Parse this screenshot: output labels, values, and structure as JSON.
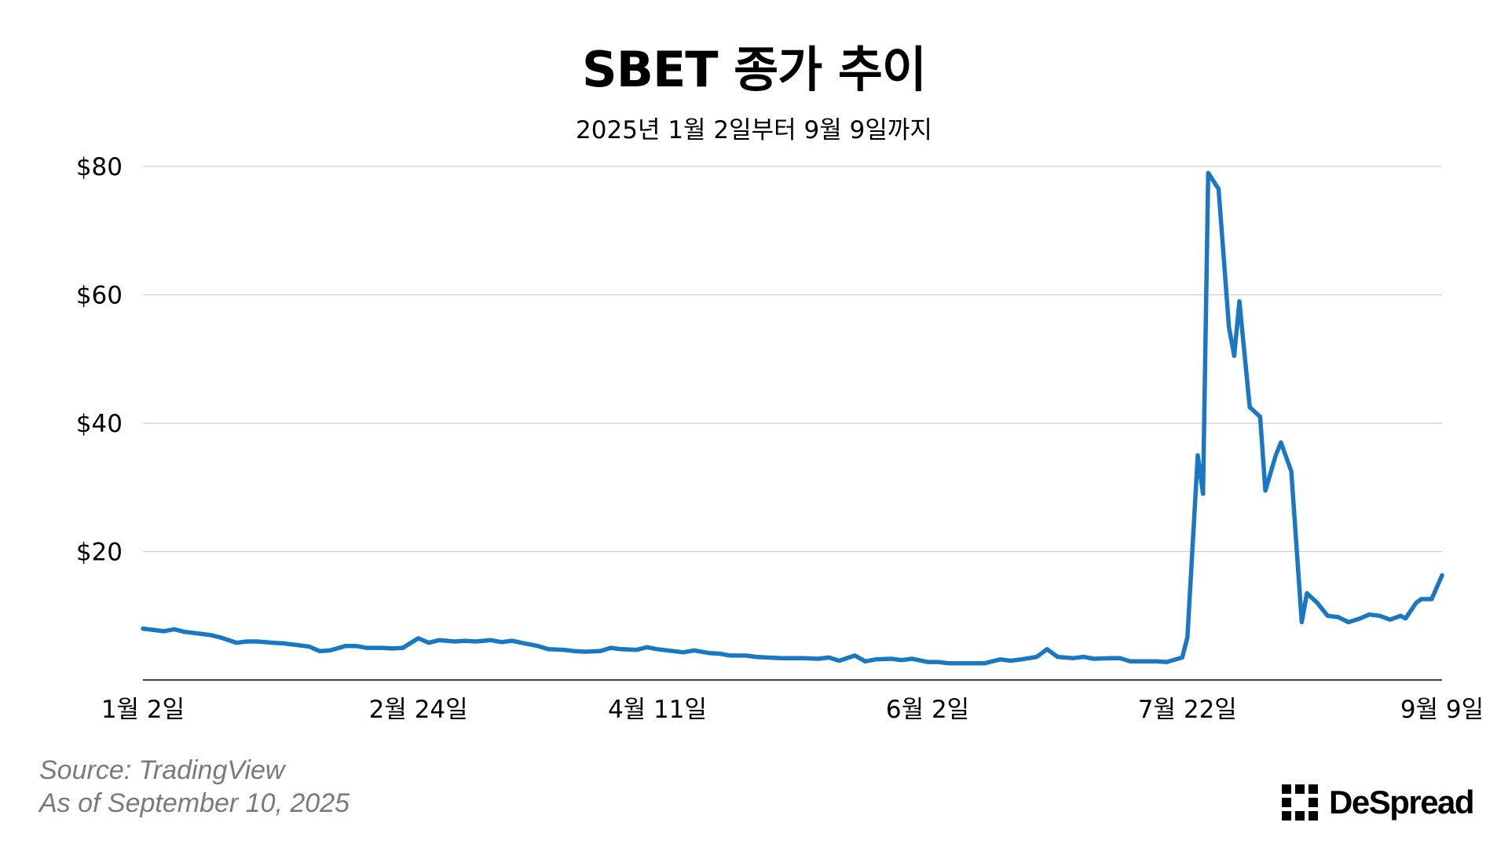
{
  "chart_data": {
    "type": "line",
    "title": "SBET 종가 추이",
    "subtitle": "2025년 1월 2일부터 9월 9일까지",
    "xlabel": "",
    "ylabel": "",
    "ylim": [
      0,
      80
    ],
    "y_ticks": [
      {
        "value": 20,
        "label": "$20"
      },
      {
        "value": 40,
        "label": "$40"
      },
      {
        "value": 60,
        "label": "$60"
      },
      {
        "value": 80,
        "label": "$80"
      }
    ],
    "x_ticks": [
      {
        "value": "2025-01-02",
        "label": "1월 2일"
      },
      {
        "value": "2025-02-24",
        "label": "2월 24일"
      },
      {
        "value": "2025-04-11",
        "label": "4월 11일"
      },
      {
        "value": "2025-06-02",
        "label": "6월 2일"
      },
      {
        "value": "2025-07-22",
        "label": "7월 22일"
      },
      {
        "value": "2025-09-09",
        "label": "9월 9일"
      }
    ],
    "grid": true,
    "line_color": "#1a78c2",
    "series": [
      {
        "values": [
          [
            "2025-01-02",
            8.0
          ],
          [
            "2025-01-06",
            7.6
          ],
          [
            "2025-01-08",
            7.9
          ],
          [
            "2025-01-10",
            7.5
          ],
          [
            "2025-01-13",
            7.2
          ],
          [
            "2025-01-15",
            7.0
          ],
          [
            "2025-01-17",
            6.6
          ],
          [
            "2025-01-20",
            5.8
          ],
          [
            "2025-01-22",
            6.0
          ],
          [
            "2025-01-24",
            6.0
          ],
          [
            "2025-01-27",
            5.8
          ],
          [
            "2025-01-29",
            5.7
          ],
          [
            "2025-01-31",
            5.5
          ],
          [
            "2025-02-03",
            5.2
          ],
          [
            "2025-02-05",
            4.5
          ],
          [
            "2025-02-07",
            4.6
          ],
          [
            "2025-02-10",
            5.3
          ],
          [
            "2025-02-12",
            5.3
          ],
          [
            "2025-02-14",
            5.0
          ],
          [
            "2025-02-17",
            5.0
          ],
          [
            "2025-02-19",
            4.9
          ],
          [
            "2025-02-21",
            5.0
          ],
          [
            "2025-02-24",
            6.5
          ],
          [
            "2025-02-26",
            5.8
          ],
          [
            "2025-02-28",
            6.2
          ],
          [
            "2025-03-03",
            6.0
          ],
          [
            "2025-03-05",
            6.1
          ],
          [
            "2025-03-07",
            6.0
          ],
          [
            "2025-03-10",
            6.2
          ],
          [
            "2025-03-12",
            5.9
          ],
          [
            "2025-03-14",
            6.1
          ],
          [
            "2025-03-17",
            5.6
          ],
          [
            "2025-03-19",
            5.3
          ],
          [
            "2025-03-21",
            4.8
          ],
          [
            "2025-03-24",
            4.7
          ],
          [
            "2025-03-26",
            4.5
          ],
          [
            "2025-03-28",
            4.4
          ],
          [
            "2025-03-31",
            4.5
          ],
          [
            "2025-04-02",
            5.0
          ],
          [
            "2025-04-04",
            4.8
          ],
          [
            "2025-04-07",
            4.7
          ],
          [
            "2025-04-09",
            5.1
          ],
          [
            "2025-04-11",
            4.8
          ],
          [
            "2025-04-14",
            4.5
          ],
          [
            "2025-04-16",
            4.3
          ],
          [
            "2025-04-18",
            4.6
          ],
          [
            "2025-04-21",
            4.2
          ],
          [
            "2025-04-23",
            4.1
          ],
          [
            "2025-04-25",
            3.8
          ],
          [
            "2025-04-28",
            3.8
          ],
          [
            "2025-04-30",
            3.6
          ],
          [
            "2025-05-02",
            3.5
          ],
          [
            "2025-05-05",
            3.4
          ],
          [
            "2025-05-07",
            3.4
          ],
          [
            "2025-05-09",
            3.4
          ],
          [
            "2025-05-12",
            3.3
          ],
          [
            "2025-05-14",
            3.5
          ],
          [
            "2025-05-16",
            3.0
          ],
          [
            "2025-05-19",
            3.8
          ],
          [
            "2025-05-21",
            2.9
          ],
          [
            "2025-05-23",
            3.2
          ],
          [
            "2025-05-26",
            3.3
          ],
          [
            "2025-05-28",
            3.1
          ],
          [
            "2025-05-30",
            3.3
          ],
          [
            "2025-06-02",
            2.8
          ],
          [
            "2025-06-04",
            2.8
          ],
          [
            "2025-06-06",
            2.6
          ],
          [
            "2025-06-09",
            2.6
          ],
          [
            "2025-06-11",
            2.6
          ],
          [
            "2025-06-13",
            2.6
          ],
          [
            "2025-06-16",
            3.2
          ],
          [
            "2025-06-18",
            3.0
          ],
          [
            "2025-06-20",
            3.2
          ],
          [
            "2025-06-23",
            3.6
          ],
          [
            "2025-06-25",
            4.8
          ],
          [
            "2025-06-27",
            3.6
          ],
          [
            "2025-06-30",
            3.4
          ],
          [
            "2025-07-02",
            3.6
          ],
          [
            "2025-07-04",
            3.3
          ],
          [
            "2025-07-07",
            3.4
          ],
          [
            "2025-07-09",
            3.4
          ],
          [
            "2025-07-11",
            2.9
          ],
          [
            "2025-07-14",
            2.9
          ],
          [
            "2025-07-16",
            2.9
          ],
          [
            "2025-07-18",
            2.8
          ],
          [
            "2025-07-21",
            3.5
          ],
          [
            "2025-07-22",
            6.6
          ],
          [
            "2025-07-24",
            35.0
          ],
          [
            "2025-07-25",
            29.0
          ],
          [
            "2025-07-26",
            79.0
          ],
          [
            "2025-07-28",
            76.5
          ],
          [
            "2025-07-30",
            55.0
          ],
          [
            "2025-07-31",
            50.5
          ],
          [
            "2025-08-01",
            59.0
          ],
          [
            "2025-08-03",
            42.5
          ],
          [
            "2025-08-05",
            41.0
          ],
          [
            "2025-08-06",
            29.5
          ],
          [
            "2025-08-08",
            35.0
          ],
          [
            "2025-08-09",
            37.0
          ],
          [
            "2025-08-11",
            32.5
          ],
          [
            "2025-08-13",
            9.0
          ],
          [
            "2025-08-14",
            13.5
          ],
          [
            "2025-08-16",
            12.0
          ],
          [
            "2025-08-18",
            10.0
          ],
          [
            "2025-08-20",
            9.8
          ],
          [
            "2025-08-22",
            9.0
          ],
          [
            "2025-08-24",
            9.5
          ],
          [
            "2025-08-26",
            10.2
          ],
          [
            "2025-08-28",
            10.0
          ],
          [
            "2025-08-30",
            9.4
          ],
          [
            "2025-09-01",
            10.0
          ],
          [
            "2025-09-02",
            9.6
          ],
          [
            "2025-09-04",
            12.0
          ],
          [
            "2025-09-05",
            12.6
          ],
          [
            "2025-09-07",
            12.6
          ],
          [
            "2025-09-09",
            16.3
          ]
        ]
      }
    ]
  },
  "footer": {
    "source": "Source: TradingView",
    "as_of": "As of September 10, 2025"
  },
  "brand": {
    "name": "DeSpread"
  }
}
